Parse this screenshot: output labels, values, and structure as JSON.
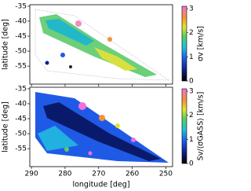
{
  "chart_data": [
    {
      "type": "map",
      "ylabel": "latitude [deg]",
      "xlim": [
        290.5,
        248
      ],
      "xticks": [
        290,
        280,
        270,
        260,
        250
      ],
      "ylim": [
        -61,
        -34.5
      ],
      "yticks": [
        -35,
        -40,
        -45,
        -50,
        -55
      ],
      "colorbar": {
        "label": "σv [km/s]",
        "lim": [
          0,
          3.1
        ],
        "ticks": [
          0,
          1,
          2,
          3
        ]
      }
    },
    {
      "type": "map",
      "ylabel": "latitude [deg]",
      "xlabel": "longitude [deg]",
      "xlim": [
        290.5,
        248
      ],
      "xticks": [
        290,
        280,
        270,
        260,
        250
      ],
      "ylim": [
        -61,
        -34.5
      ],
      "yticks": [
        -35,
        -40,
        -45,
        -50,
        -55
      ],
      "colorbar": {
        "label": "Sv/⟨σGASS⟩ [km/s]",
        "lim": [
          0,
          3.1
        ],
        "ticks": [
          0,
          1,
          2,
          3
        ]
      }
    }
  ]
}
